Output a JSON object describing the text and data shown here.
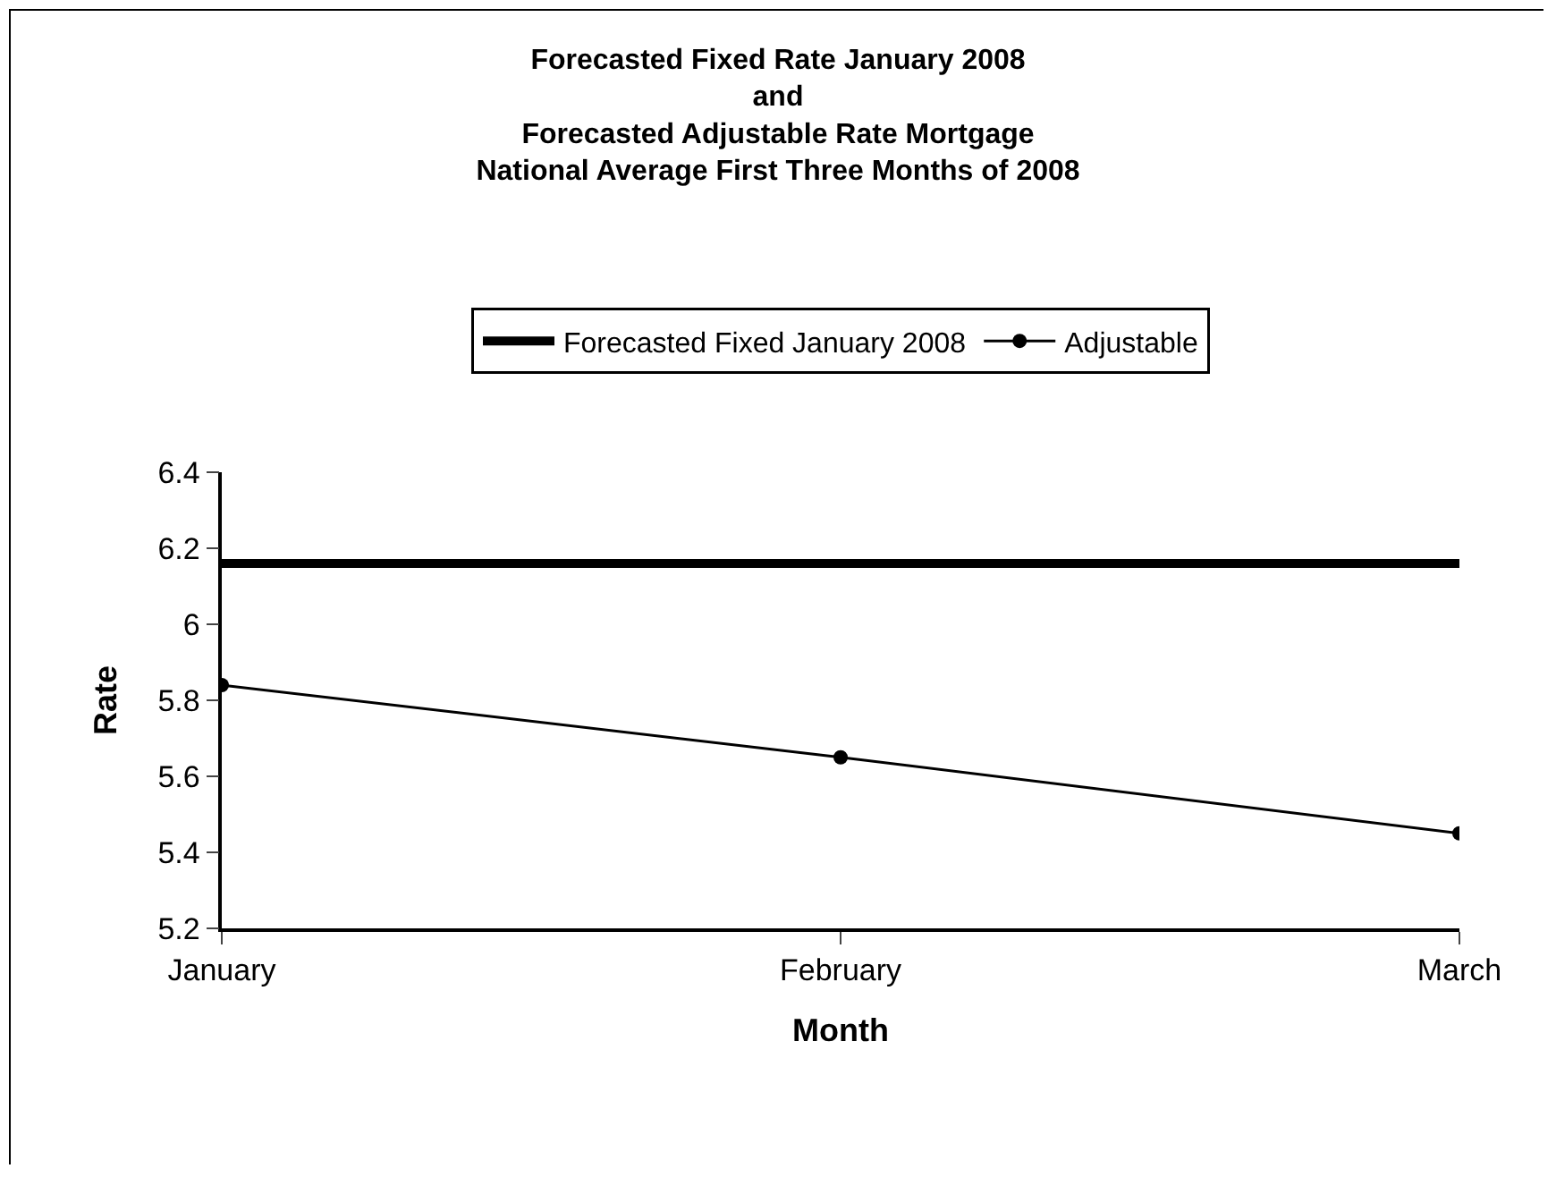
{
  "chart_data": {
    "type": "line",
    "title": "Forecasted Fixed Rate January 2008\nand\nForecasted Adjustable Rate Mortgage\nNational Average First Three Months of 2008",
    "xlabel": "Month",
    "ylabel": "Rate",
    "categories": [
      "January",
      "February",
      "March"
    ],
    "series": [
      {
        "name": "Forecasted Fixed January 2008",
        "color": "#000000",
        "marker": "none",
        "values": [
          6.16,
          6.16,
          6.16
        ]
      },
      {
        "name": "Adjustable",
        "color": "#000000",
        "marker": "circle",
        "values": [
          5.84,
          5.65,
          5.45
        ]
      }
    ],
    "ylim": [
      5.2,
      6.4
    ],
    "yticks": [
      5.2,
      5.4,
      5.6,
      5.8,
      6,
      6.2,
      6.4
    ],
    "grid": false,
    "legend": "top"
  }
}
